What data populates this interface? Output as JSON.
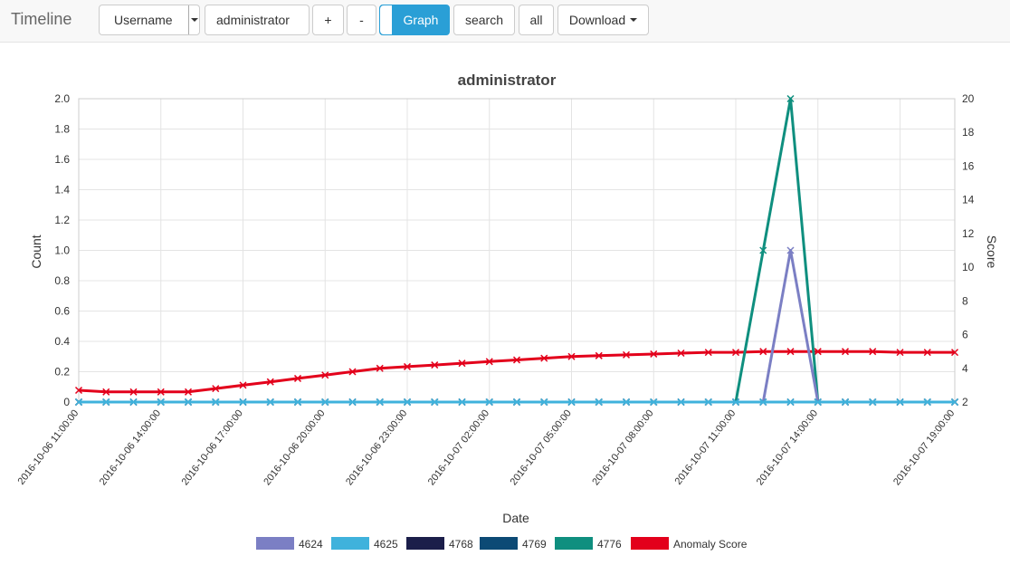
{
  "navbar": {
    "brand": "Timeline",
    "field_select": "Username",
    "query_value": "administrator",
    "plus_label": "+",
    "minus_label": "-",
    "graph_toggle_label": "Graph",
    "search_label": "search",
    "all_label": "all",
    "download_label": "Download"
  },
  "colors": {
    "4624": "#7b7fc4",
    "4625": "#3fb2dc",
    "4768": "#1b1e4a",
    "4769": "#0c4a75",
    "4776": "#0f8f7f",
    "anomaly": "#e3001b",
    "toggle_accent": "#2a9fd6"
  },
  "chart_data": {
    "type": "line",
    "title": "administrator",
    "xlabel": "Date",
    "ylabel": "Count",
    "y2label": "Score",
    "ylim": [
      0,
      2
    ],
    "y2lim": [
      2,
      20
    ],
    "yticks": [
      "0",
      "0.2",
      "0.4",
      "0.6",
      "0.8",
      "1.0",
      "1.2",
      "1.4",
      "1.6",
      "1.8",
      "2.0"
    ],
    "y2ticks": [
      "2",
      "4",
      "6",
      "8",
      "10",
      "12",
      "14",
      "16",
      "18",
      "20"
    ],
    "grid": true,
    "legend_position": "bottom",
    "x": [
      "2016-10-06 11:00:00",
      "2016-10-06 12:00:00",
      "2016-10-06 13:00:00",
      "2016-10-06 14:00:00",
      "2016-10-06 15:00:00",
      "2016-10-06 16:00:00",
      "2016-10-06 17:00:00",
      "2016-10-06 18:00:00",
      "2016-10-06 19:00:00",
      "2016-10-06 20:00:00",
      "2016-10-06 21:00:00",
      "2016-10-06 22:00:00",
      "2016-10-06 23:00:00",
      "2016-10-07 00:00:00",
      "2016-10-07 01:00:00",
      "2016-10-07 02:00:00",
      "2016-10-07 03:00:00",
      "2016-10-07 04:00:00",
      "2016-10-07 05:00:00",
      "2016-10-07 06:00:00",
      "2016-10-07 07:00:00",
      "2016-10-07 08:00:00",
      "2016-10-07 09:00:00",
      "2016-10-07 10:00:00",
      "2016-10-07 11:00:00",
      "2016-10-07 12:00:00",
      "2016-10-07 13:00:00",
      "2016-10-07 14:00:00",
      "2016-10-07 15:00:00",
      "2016-10-07 16:00:00",
      "2016-10-07 17:00:00",
      "2016-10-07 18:00:00",
      "2016-10-07 19:00:00"
    ],
    "xtick_labels": [
      "2016-10-06 11:00:00",
      "2016-10-06 14:00:00",
      "2016-10-06 17:00:00",
      "2016-10-06 20:00:00",
      "2016-10-06 23:00:00",
      "2016-10-07 02:00:00",
      "2016-10-07 05:00:00",
      "2016-10-07 08:00:00",
      "2016-10-07 11:00:00",
      "2016-10-07 14:00:00",
      "2016-10-07 19:00:00"
    ],
    "series": [
      {
        "name": "4624",
        "axis": "left",
        "colorKey": "4624",
        "values": [
          0,
          0,
          0,
          0,
          0,
          0,
          0,
          0,
          0,
          0,
          0,
          0,
          0,
          0,
          0,
          0,
          0,
          0,
          0,
          0,
          0,
          0,
          0,
          0,
          0,
          0,
          1,
          0,
          0,
          0,
          0,
          0,
          0
        ]
      },
      {
        "name": "4625",
        "axis": "left",
        "colorKey": "4625",
        "values": [
          0,
          0,
          0,
          0,
          0,
          0,
          0,
          0,
          0,
          0,
          0,
          0,
          0,
          0,
          0,
          0,
          0,
          0,
          0,
          0,
          0,
          0,
          0,
          0,
          0,
          0,
          0,
          0,
          0,
          0,
          0,
          0,
          0
        ]
      },
      {
        "name": "4768",
        "axis": "left",
        "colorKey": "4768",
        "values": [
          0,
          0,
          0,
          0,
          0,
          0,
          0,
          0,
          0,
          0,
          0,
          0,
          0,
          0,
          0,
          0,
          0,
          0,
          0,
          0,
          0,
          0,
          0,
          0,
          0,
          0,
          0,
          0,
          0,
          0,
          0,
          0,
          0
        ]
      },
      {
        "name": "4769",
        "axis": "left",
        "colorKey": "4769",
        "values": [
          0,
          0,
          0,
          0,
          0,
          0,
          0,
          0,
          0,
          0,
          0,
          0,
          0,
          0,
          0,
          0,
          0,
          0,
          0,
          0,
          0,
          0,
          0,
          0,
          0,
          0,
          0,
          0,
          0,
          0,
          0,
          0,
          0
        ]
      },
      {
        "name": "4776",
        "axis": "left",
        "colorKey": "4776",
        "values": [
          0,
          0,
          0,
          0,
          0,
          0,
          0,
          0,
          0,
          0,
          0,
          0,
          0,
          0,
          0,
          0,
          0,
          0,
          0,
          0,
          0,
          0,
          0,
          0,
          0,
          1,
          2,
          0,
          0,
          0,
          0,
          0,
          0
        ]
      },
      {
        "name": "Anomaly Score",
        "axis": "right",
        "colorKey": "anomaly",
        "values": [
          2.7,
          2.6,
          2.6,
          2.6,
          2.6,
          2.8,
          3.0,
          3.2,
          3.4,
          3.6,
          3.8,
          4.0,
          4.1,
          4.2,
          4.3,
          4.4,
          4.5,
          4.6,
          4.7,
          4.75,
          4.8,
          4.85,
          4.9,
          4.95,
          4.95,
          5.0,
          5.0,
          5.0,
          5.0,
          5.0,
          4.95,
          4.95,
          4.95
        ]
      }
    ]
  }
}
